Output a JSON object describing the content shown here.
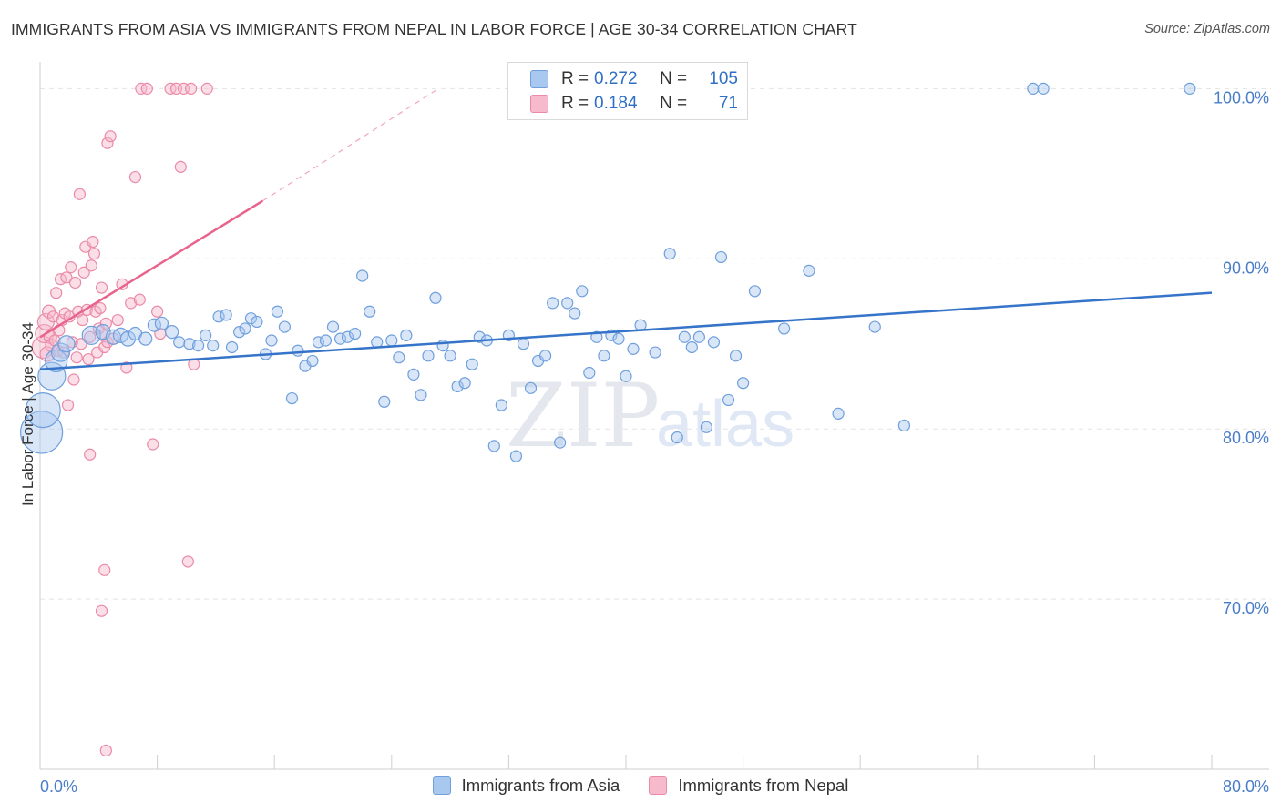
{
  "title": "IMMIGRANTS FROM ASIA VS IMMIGRANTS FROM NEPAL IN LABOR FORCE | AGE 30-34 CORRELATION CHART",
  "source": "Source: ZipAtlas.com",
  "watermark": {
    "zip": "ZIP",
    "atlas": "atlas"
  },
  "legend": {
    "r_label": "R =",
    "n_label": "N =",
    "entries": [
      {
        "name": "Immigrants from Asia",
        "r": "0.272",
        "n": "105",
        "fill": "#a9c8ef",
        "stroke": "#6f9fdc"
      },
      {
        "name": "Immigrants from Nepal",
        "r": "0.184",
        "n": "71",
        "fill": "#f7b9cc",
        "stroke": "#ea8aa6"
      }
    ]
  },
  "colors": {
    "asia_line": "#3574c9",
    "nepal_line": "#e8648c",
    "axis_text": "#4a7dc8",
    "grid": "#e3e3e3"
  },
  "chart_data": {
    "type": "scatter",
    "title": "IMMIGRANTS FROM ASIA VS IMMIGRANTS FROM NEPAL IN LABOR FORCE | AGE 30-34 CORRELATION CHART",
    "xlabel": "",
    "ylabel": "In Labor Force | Age 30-34",
    "xlim": [
      0,
      80
    ],
    "ylim": [
      60,
      102
    ],
    "x_tick_labels": [
      {
        "value": 0,
        "label": "0.0%"
      },
      {
        "value": 80,
        "label": "80.0%"
      }
    ],
    "y_tick_labels": [
      {
        "value": 100,
        "label": "100.0%"
      },
      {
        "value": 90,
        "label": "90.0%"
      },
      {
        "value": 80,
        "label": "80.0%"
      },
      {
        "value": 70,
        "label": "70.0%"
      }
    ],
    "series": [
      {
        "name": "Immigrants from Asia",
        "trend": {
          "x0": 0,
          "y0": 83.5,
          "x1": 80,
          "y1": 88.0
        },
        "points": [
          [
            0.1,
            79.8,
            2.3
          ],
          [
            0.2,
            81.1,
            1.9
          ],
          [
            0.8,
            83.1,
            1.5
          ],
          [
            1.1,
            84.0,
            1.2
          ],
          [
            1.4,
            84.5,
            1.0
          ],
          [
            1.8,
            85.0,
            0.9
          ],
          [
            3.5,
            85.5,
            1.0
          ],
          [
            4.3,
            85.7,
            0.8
          ],
          [
            5.0,
            85.4,
            0.8
          ],
          [
            5.5,
            85.5,
            0.8
          ],
          [
            6.0,
            85.3,
            0.8
          ],
          [
            6.5,
            85.6,
            0.7
          ],
          [
            7.2,
            85.3,
            0.7
          ],
          [
            7.8,
            86.1,
            0.7
          ],
          [
            8.3,
            86.2,
            0.7
          ],
          [
            9.0,
            85.7,
            0.7
          ],
          [
            9.5,
            85.1,
            0.6
          ],
          [
            10.2,
            85.0,
            0.6
          ],
          [
            10.8,
            84.9,
            0.6
          ],
          [
            11.3,
            85.5,
            0.6
          ],
          [
            11.8,
            84.9,
            0.6
          ],
          [
            12.2,
            86.6,
            0.6
          ],
          [
            12.7,
            86.7,
            0.6
          ],
          [
            13.1,
            84.8,
            0.6
          ],
          [
            13.6,
            85.7,
            0.6
          ],
          [
            14.0,
            85.9,
            0.6
          ],
          [
            14.4,
            86.5,
            0.6
          ],
          [
            14.8,
            86.3,
            0.6
          ],
          [
            15.4,
            84.4,
            0.6
          ],
          [
            15.8,
            85.2,
            0.6
          ],
          [
            16.2,
            86.9,
            0.6
          ],
          [
            16.7,
            86.0,
            0.6
          ],
          [
            17.2,
            81.8,
            0.6
          ],
          [
            17.6,
            84.6,
            0.6
          ],
          [
            18.1,
            83.7,
            0.6
          ],
          [
            18.6,
            84.0,
            0.6
          ],
          [
            19.0,
            85.1,
            0.6
          ],
          [
            19.5,
            85.2,
            0.6
          ],
          [
            20.0,
            86.0,
            0.6
          ],
          [
            20.5,
            85.3,
            0.6
          ],
          [
            21.0,
            85.4,
            0.6
          ],
          [
            21.5,
            85.6,
            0.6
          ],
          [
            22.0,
            89.0,
            0.6
          ],
          [
            22.5,
            86.9,
            0.6
          ],
          [
            23.0,
            85.1,
            0.6
          ],
          [
            23.5,
            81.6,
            0.6
          ],
          [
            24.0,
            85.2,
            0.6
          ],
          [
            24.5,
            84.2,
            0.6
          ],
          [
            25.0,
            85.5,
            0.6
          ],
          [
            25.5,
            83.2,
            0.6
          ],
          [
            26.0,
            82.0,
            0.6
          ],
          [
            26.5,
            84.3,
            0.6
          ],
          [
            27.0,
            87.7,
            0.6
          ],
          [
            27.5,
            84.9,
            0.6
          ],
          [
            28.0,
            84.3,
            0.6
          ],
          [
            28.5,
            82.5,
            0.6
          ],
          [
            29.0,
            82.7,
            0.6
          ],
          [
            29.5,
            83.8,
            0.6
          ],
          [
            30.0,
            85.4,
            0.6
          ],
          [
            30.5,
            85.2,
            0.6
          ],
          [
            31.0,
            79.0,
            0.6
          ],
          [
            31.5,
            81.4,
            0.6
          ],
          [
            32.0,
            85.5,
            0.6
          ],
          [
            32.5,
            78.4,
            0.6
          ],
          [
            33.0,
            85.0,
            0.6
          ],
          [
            33.5,
            82.4,
            0.6
          ],
          [
            34.0,
            84.0,
            0.6
          ],
          [
            34.5,
            84.3,
            0.6
          ],
          [
            35.0,
            87.4,
            0.6
          ],
          [
            35.5,
            79.2,
            0.6
          ],
          [
            36.0,
            87.4,
            0.6
          ],
          [
            36.5,
            86.8,
            0.6
          ],
          [
            37.0,
            88.1,
            0.6
          ],
          [
            37.5,
            83.3,
            0.6
          ],
          [
            38.0,
            85.4,
            0.6
          ],
          [
            38.5,
            84.3,
            0.6
          ],
          [
            39.0,
            85.5,
            0.6
          ],
          [
            39.5,
            85.3,
            0.6
          ],
          [
            40.0,
            83.1,
            0.6
          ],
          [
            40.5,
            84.7,
            0.6
          ],
          [
            41.0,
            86.1,
            0.6
          ],
          [
            42.0,
            84.5,
            0.6
          ],
          [
            43.0,
            90.3,
            0.6
          ],
          [
            43.5,
            79.5,
            0.6
          ],
          [
            44.0,
            85.4,
            0.6
          ],
          [
            44.5,
            84.8,
            0.6
          ],
          [
            45.0,
            85.4,
            0.6
          ],
          [
            45.5,
            80.1,
            0.6
          ],
          [
            46.0,
            85.1,
            0.6
          ],
          [
            46.5,
            90.1,
            0.6
          ],
          [
            47.0,
            81.7,
            0.6
          ],
          [
            47.5,
            84.3,
            0.6
          ],
          [
            48.0,
            82.7,
            0.6
          ],
          [
            48.8,
            88.1,
            0.6
          ],
          [
            50.8,
            85.9,
            0.6
          ],
          [
            52.5,
            89.3,
            0.6
          ],
          [
            54.5,
            80.9,
            0.6
          ],
          [
            57.0,
            86.0,
            0.6
          ],
          [
            59.0,
            80.2,
            0.6
          ],
          [
            67.8,
            100.0,
            0.6
          ],
          [
            68.5,
            100.0,
            0.6
          ],
          [
            78.5,
            100.0,
            0.6
          ]
        ]
      },
      {
        "name": "Immigrants from Nepal",
        "trend": {
          "x0": 0,
          "y0": 85.4,
          "x1": 15.2,
          "y1": 93.4,
          "dash_x1": 27.2,
          "dash_y1": 100.0
        },
        "points": [
          [
            0.2,
            84.8,
            1.2
          ],
          [
            0.3,
            85.6,
            1.0
          ],
          [
            0.4,
            86.3,
            0.9
          ],
          [
            0.5,
            84.4,
            0.8
          ],
          [
            0.6,
            86.9,
            0.7
          ],
          [
            0.7,
            85.4,
            0.7
          ],
          [
            0.8,
            84.9,
            0.7
          ],
          [
            0.9,
            86.6,
            0.6
          ],
          [
            1.0,
            85.2,
            0.6
          ],
          [
            1.1,
            88.0,
            0.6
          ],
          [
            1.2,
            84.6,
            0.6
          ],
          [
            1.3,
            85.8,
            0.6
          ],
          [
            1.4,
            88.8,
            0.6
          ],
          [
            1.5,
            86.4,
            0.6
          ],
          [
            1.6,
            84.5,
            0.6
          ],
          [
            1.7,
            86.8,
            0.6
          ],
          [
            1.8,
            88.9,
            0.6
          ],
          [
            1.9,
            81.4,
            0.6
          ],
          [
            2.0,
            86.6,
            0.6
          ],
          [
            2.1,
            89.5,
            0.6
          ],
          [
            2.2,
            85.1,
            0.6
          ],
          [
            2.3,
            82.9,
            0.6
          ],
          [
            2.4,
            88.6,
            0.6
          ],
          [
            2.5,
            84.2,
            0.6
          ],
          [
            2.6,
            86.9,
            0.6
          ],
          [
            2.7,
            93.8,
            0.6
          ],
          [
            2.8,
            85.0,
            0.6
          ],
          [
            2.9,
            86.4,
            0.6
          ],
          [
            3.0,
            89.2,
            0.6
          ],
          [
            3.1,
            90.7,
            0.6
          ],
          [
            3.2,
            87.0,
            0.6
          ],
          [
            3.3,
            84.1,
            0.6
          ],
          [
            3.4,
            85.4,
            0.6
          ],
          [
            3.5,
            89.6,
            0.6
          ],
          [
            3.6,
            91.0,
            0.6
          ],
          [
            3.7,
            90.3,
            0.6
          ],
          [
            3.8,
            86.9,
            0.6
          ],
          [
            3.9,
            84.5,
            0.6
          ],
          [
            4.0,
            85.9,
            0.6
          ],
          [
            4.1,
            87.1,
            0.6
          ],
          [
            4.2,
            88.3,
            0.6
          ],
          [
            4.3,
            85.5,
            0.6
          ],
          [
            4.4,
            84.8,
            0.6
          ],
          [
            4.5,
            86.2,
            0.6
          ],
          [
            4.6,
            85.1,
            0.6
          ],
          [
            3.4,
            78.5,
            0.6
          ],
          [
            4.6,
            96.8,
            0.6
          ],
          [
            4.8,
            97.2,
            0.6
          ],
          [
            5.0,
            85.3,
            0.6
          ],
          [
            5.3,
            86.4,
            0.6
          ],
          [
            5.6,
            88.5,
            0.6
          ],
          [
            5.9,
            83.6,
            0.6
          ],
          [
            6.2,
            87.4,
            0.6
          ],
          [
            6.5,
            94.8,
            0.6
          ],
          [
            6.8,
            87.6,
            0.6
          ],
          [
            6.9,
            100.0,
            0.6
          ],
          [
            7.3,
            100.0,
            0.6
          ],
          [
            7.7,
            79.1,
            0.6
          ],
          [
            8.0,
            86.9,
            0.6
          ],
          [
            8.2,
            85.6,
            0.6
          ],
          [
            8.9,
            100.0,
            0.6
          ],
          [
            9.3,
            100.0,
            0.6
          ],
          [
            9.6,
            95.4,
            0.6
          ],
          [
            9.8,
            100.0,
            0.6
          ],
          [
            10.1,
            72.2,
            0.6
          ],
          [
            10.3,
            100.0,
            0.6
          ],
          [
            10.5,
            83.8,
            0.6
          ],
          [
            11.4,
            100.0,
            0.6
          ],
          [
            4.4,
            71.7,
            0.6
          ],
          [
            4.2,
            69.3,
            0.6
          ],
          [
            4.5,
            61.1,
            0.6
          ]
        ]
      }
    ]
  }
}
